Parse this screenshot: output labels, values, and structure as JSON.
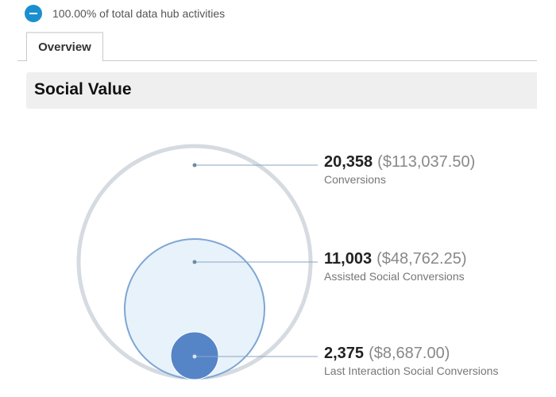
{
  "segment": {
    "text": "100.00% of total data hub activities",
    "color": "#1a8fd0"
  },
  "tabs": [
    {
      "label": "Overview",
      "active": true
    }
  ],
  "section": {
    "title": "Social Value"
  },
  "metrics": [
    {
      "value": "20,358",
      "money": "($113,037.50)",
      "label": "Conversions"
    },
    {
      "value": "11,003",
      "money": "($48,762.25)",
      "label": "Assisted Social Conversions"
    },
    {
      "value": "2,375",
      "money": "($8,687.00)",
      "label": "Last Interaction Social Conversions"
    }
  ]
}
